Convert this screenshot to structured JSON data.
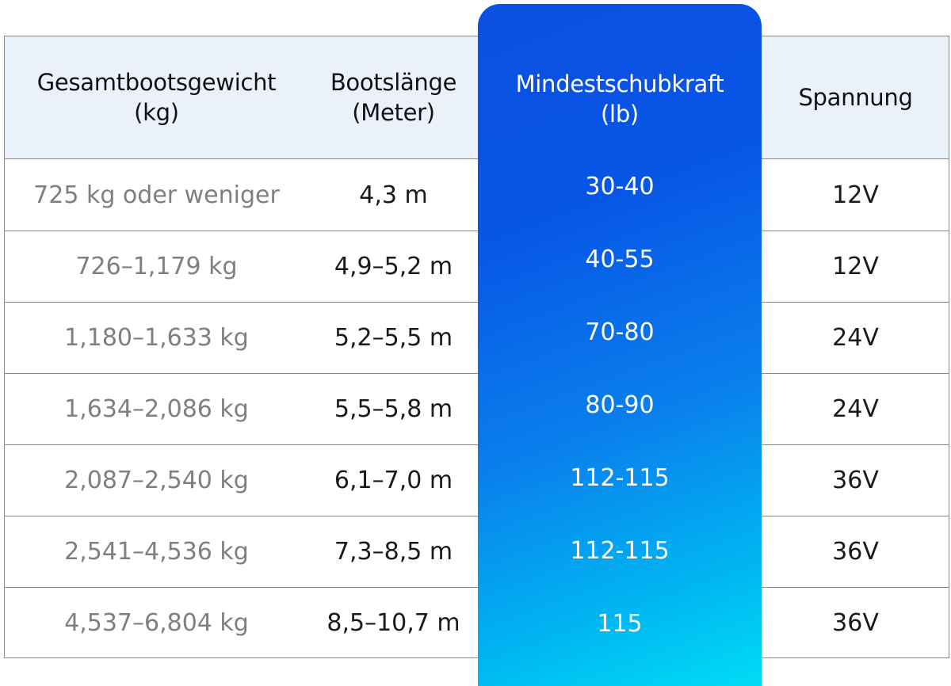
{
  "table": {
    "headers": [
      {
        "line1": "Gesamtbootsgewicht",
        "line2": "(kg)"
      },
      {
        "line1": "Bootslänge",
        "line2": "(Meter)"
      },
      {
        "line1": "Mindestschubkraft",
        "line2": "(lb)"
      },
      {
        "line1": "Spannung",
        "line2": ""
      }
    ],
    "rows": [
      {
        "weight": "725 kg oder weniger",
        "length": "4,3 m",
        "thrust": "30-40",
        "voltage": "12V"
      },
      {
        "weight": "726–1,179 kg",
        "length": "4,9–5,2 m",
        "thrust": "40-55",
        "voltage": "12V"
      },
      {
        "weight": "1,180–1,633 kg",
        "length": "5,2–5,5 m",
        "thrust": "70-80",
        "voltage": "24V"
      },
      {
        "weight": "1,634–2,086 kg",
        "length": "5,5–5,8 m",
        "thrust": "80-90",
        "voltage": "24V"
      },
      {
        "weight": "2,087–2,540 kg",
        "length": "6,1–7,0 m",
        "thrust": "112-115",
        "voltage": "36V"
      },
      {
        "weight": "2,541–4,536 kg",
        "length": "7,3–8,5 m",
        "thrust": "112-115",
        "voltage": "36V"
      },
      {
        "weight": "4,537–6,804 kg",
        "length": "8,5–10,7 m",
        "thrust": "115",
        "voltage": "36V"
      }
    ]
  },
  "colors": {
    "header_bg": "#eaf1fb",
    "highlight_top": "#0d4fe0",
    "highlight_bottom": "#00dcf5",
    "grid_line": "#8a8a8a",
    "muted_text": "#7f7f7f",
    "dark_text": "#1a1a1a"
  }
}
